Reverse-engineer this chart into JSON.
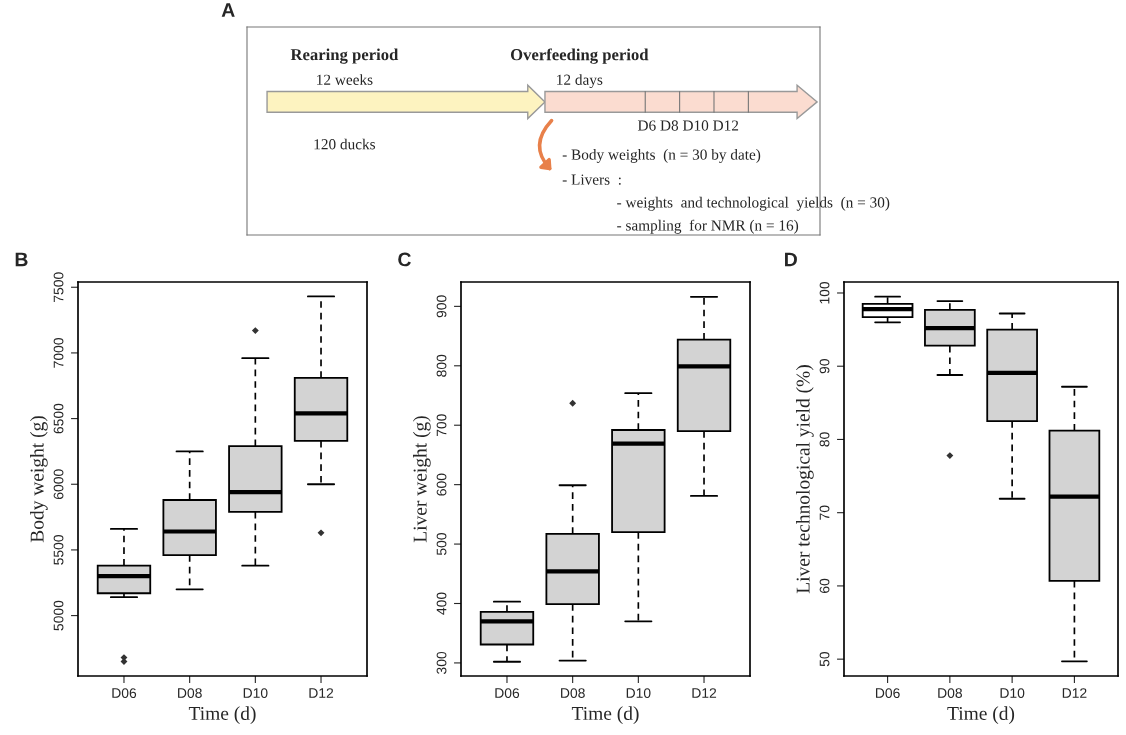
{
  "chart_data": [
    {
      "type": "other",
      "title": "A",
      "annotations": [
        "Rearing period",
        "12 weeks",
        "120 ducks",
        "Overfeeding period",
        "12 days",
        "D6 D8 D10 D12",
        "- Body weights  (n = 30 by date)",
        "- Livers  :",
        "- weights  and technological  yields  (n = 30)",
        "- sampling  for NMR (n = 16)"
      ]
    },
    {
      "type": "box",
      "title": "B",
      "xlabel": "Time (d)",
      "ylabel": "Body weight (g)",
      "categories": [
        "D06",
        "D08",
        "D10",
        "D12"
      ],
      "colors": [
        "#d3d3d3",
        "#d3d3d3",
        "#d3d3d3",
        "#d3d3d3"
      ],
      "ylim": [
        4540,
        7540
      ],
      "yticks": [
        5000,
        5500,
        6000,
        6500,
        7000,
        7500
      ],
      "boxes": [
        {
          "low": 5140,
          "q1": 5170,
          "median": 5300,
          "q3": 5380,
          "high": 5660,
          "outliers": [
            4680,
            4650
          ]
        },
        {
          "low": 5200,
          "q1": 5460,
          "median": 5640,
          "q3": 5880,
          "high": 6250
        },
        {
          "low": 5380,
          "q1": 5790,
          "median": 5940,
          "q3": 6290,
          "high": 6960,
          "outliers": [
            7170
          ]
        },
        {
          "low": 6000,
          "q1": 6330,
          "median": 6540,
          "q3": 6810,
          "high": 7430,
          "outliers": [
            5630
          ]
        }
      ]
    },
    {
      "type": "box",
      "title": "C",
      "xlabel": "Time (d)",
      "ylabel": "Liver weight (g)",
      "categories": [
        "D06",
        "D08",
        "D10",
        "D12"
      ],
      "colors": [
        "#d3d3d3",
        "#d3d3d3",
        "#d3d3d3",
        "#d3d3d3"
      ],
      "ylim": [
        278,
        941
      ],
      "yticks": [
        300,
        400,
        500,
        600,
        700,
        800,
        900
      ],
      "boxes": [
        {
          "low": 302,
          "q1": 331,
          "median": 370,
          "q3": 386,
          "high": 403
        },
        {
          "low": 304,
          "q1": 399,
          "median": 454,
          "q3": 517,
          "high": 599,
          "outliers": [
            737
          ]
        },
        {
          "low": 370,
          "q1": 520,
          "median": 669,
          "q3": 692,
          "high": 754
        },
        {
          "low": 581,
          "q1": 690,
          "median": 799,
          "q3": 844,
          "high": 916
        }
      ]
    },
    {
      "type": "box",
      "title": "D",
      "xlabel": "Time (d)",
      "ylabel": "Liver technological yield (%)",
      "categories": [
        "D06",
        "D08",
        "D10",
        "D12"
      ],
      "colors": [
        "#ffffff",
        "#d3d3d3",
        "#d3d3d3",
        "#d3d3d3"
      ],
      "ylim": [
        47.7,
        101.5
      ],
      "yticks": [
        50,
        60,
        70,
        80,
        90,
        100
      ],
      "boxes": [
        {
          "low": 96.0,
          "q1": 96.7,
          "median": 97.8,
          "q3": 98.5,
          "high": 99.5
        },
        {
          "low": 88.8,
          "q1": 92.8,
          "median": 95.2,
          "q3": 97.7,
          "high": 98.9,
          "outliers": [
            77.8
          ]
        },
        {
          "low": 71.9,
          "q1": 82.5,
          "median": 89.1,
          "q3": 95.0,
          "high": 97.2
        },
        {
          "low": 49.7,
          "q1": 60.7,
          "median": 72.2,
          "q3": 81.2,
          "high": 87.2
        }
      ]
    }
  ]
}
